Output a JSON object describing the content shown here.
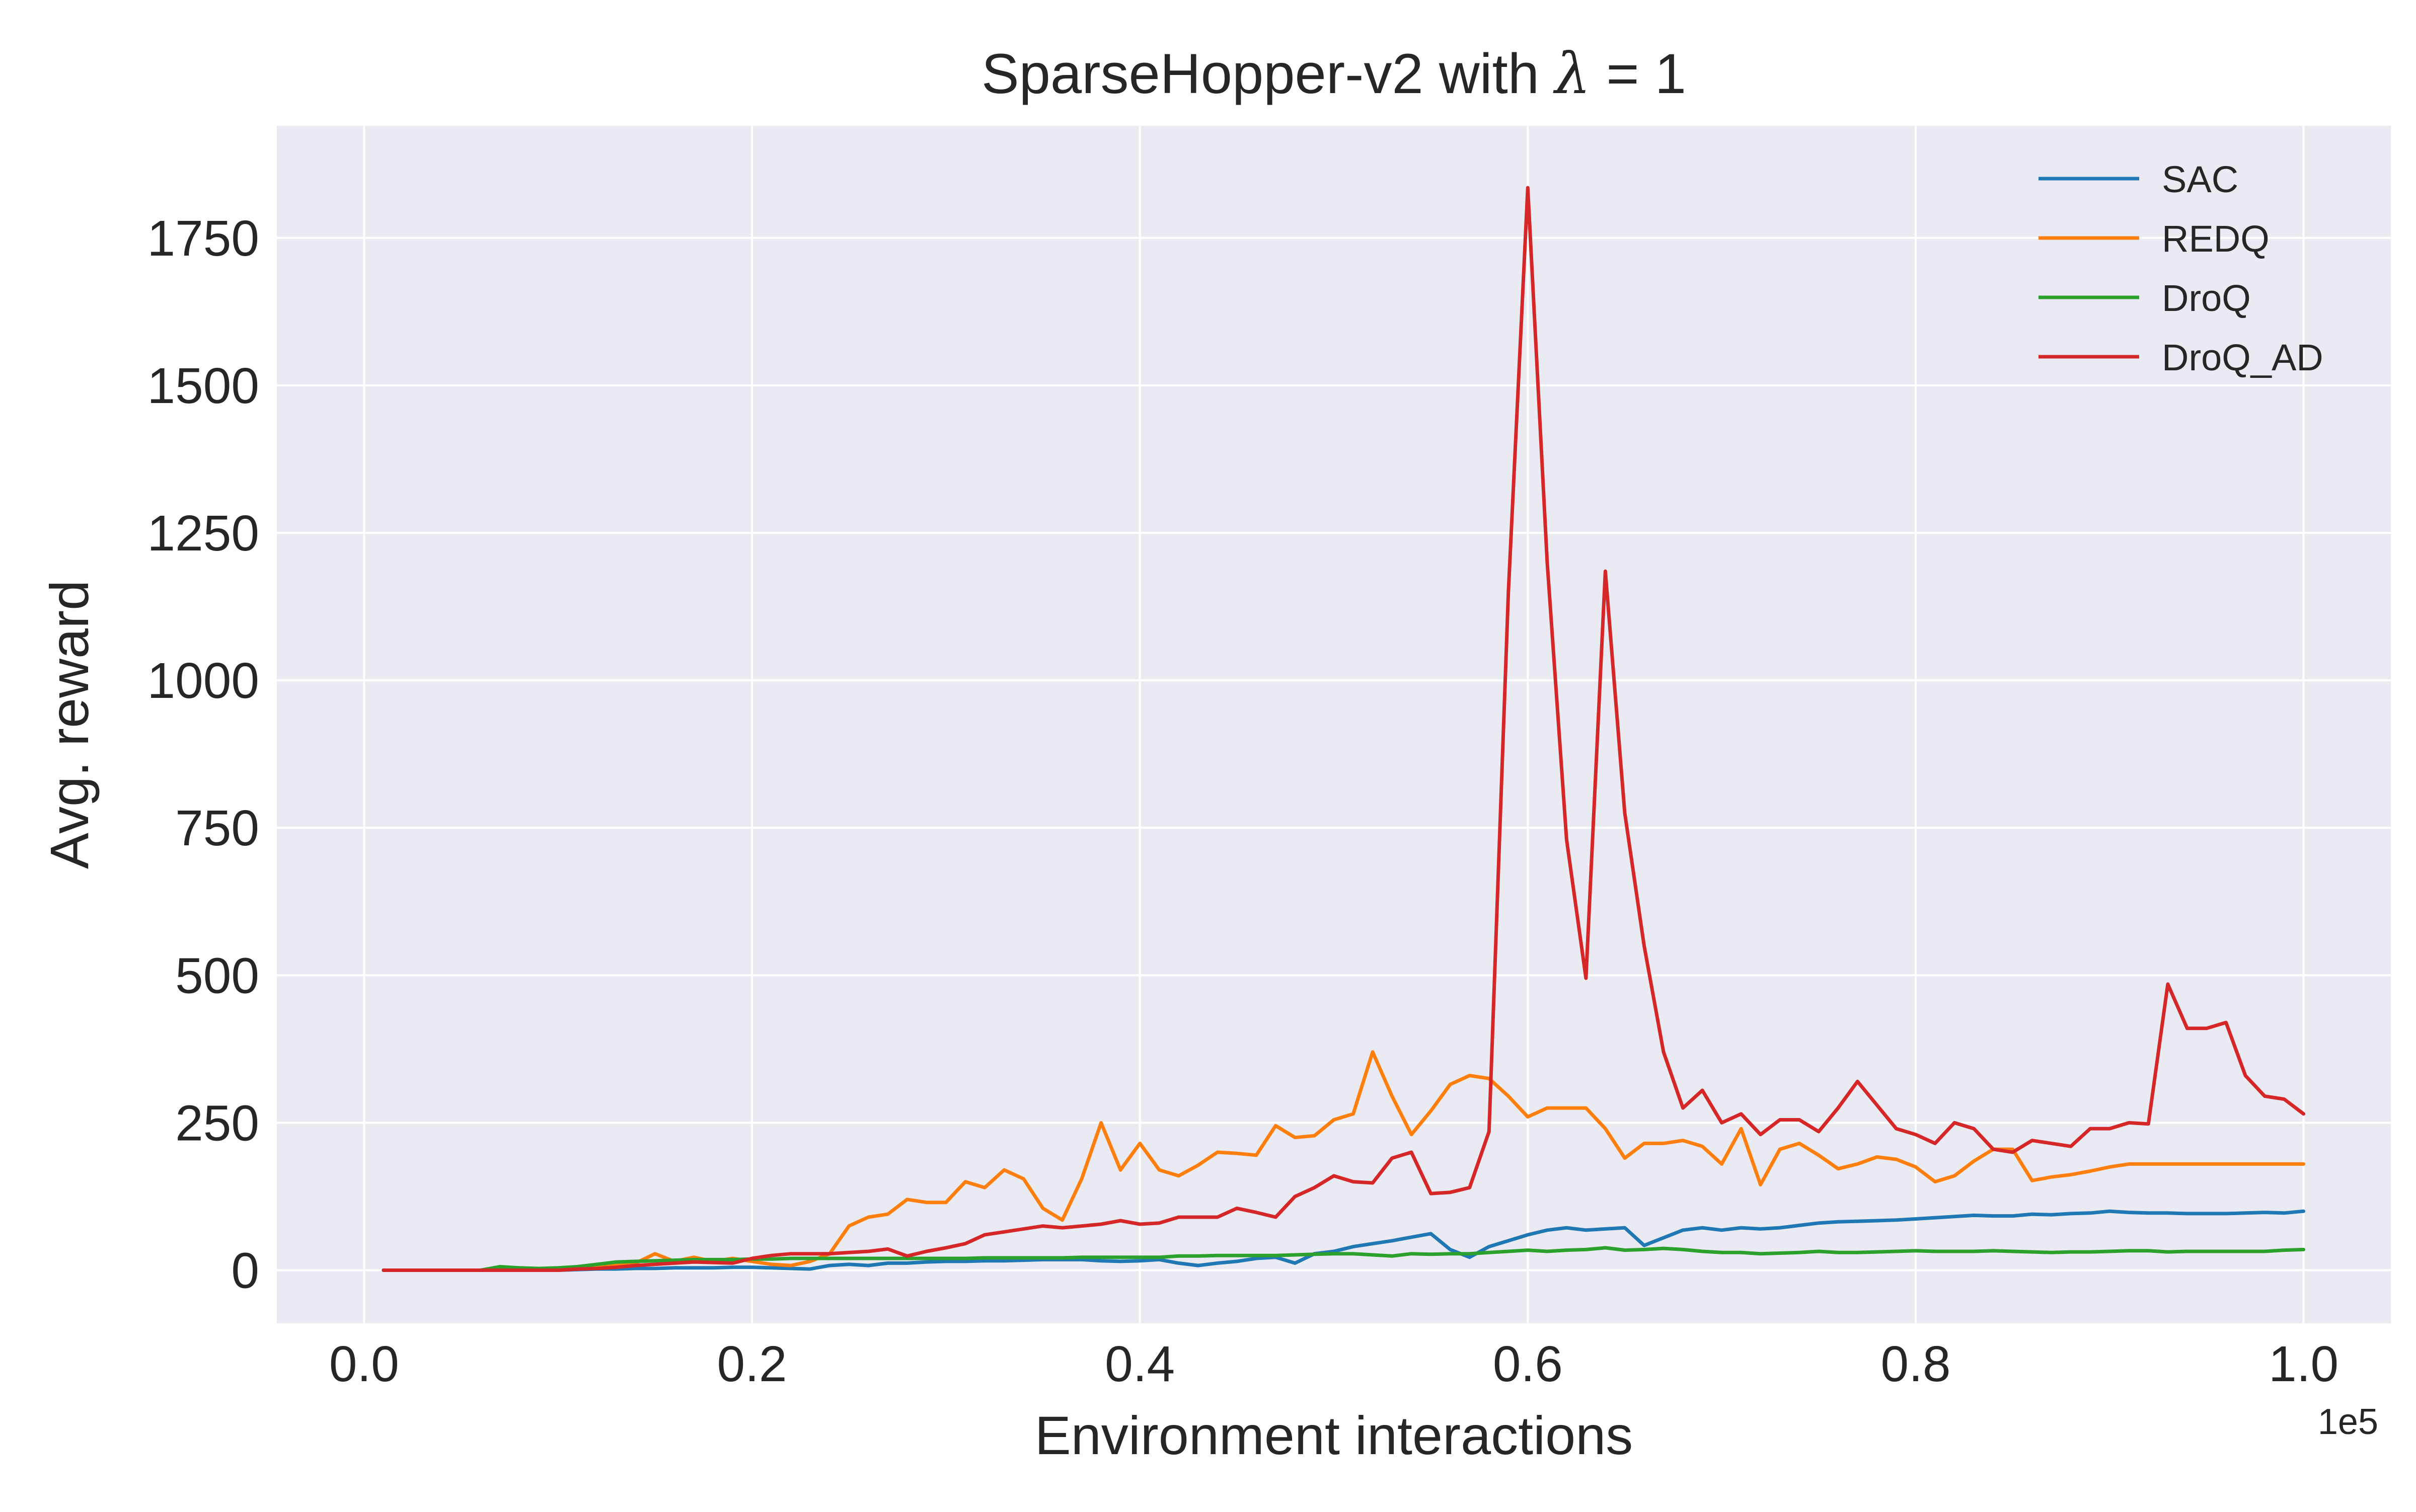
{
  "chart_data": {
    "type": "line",
    "title_main": "SparseHopper-v2 with ",
    "title_symbol": "λ",
    "title_rest": " = 1",
    "xlabel": "Environment interactions",
    "ylabel": "Avg. reward",
    "x_offset_label": "1e5",
    "xlim": [
      -0.045,
      1.045
    ],
    "ylim": [
      -90,
      1940
    ],
    "xticks": [
      0.0,
      0.2,
      0.4,
      0.6,
      0.8,
      1.0
    ],
    "xtick_labels": [
      "0.0",
      "0.2",
      "0.4",
      "0.6",
      "0.8",
      "1.0"
    ],
    "yticks": [
      0,
      250,
      500,
      750,
      1000,
      1250,
      1500,
      1750
    ],
    "ytick_labels": [
      "0",
      "250",
      "500",
      "750",
      "1000",
      "1250",
      "1500",
      "1750"
    ],
    "grid": true,
    "legend_position": "top-right",
    "colors": {
      "background": "#eaeaf2",
      "grid": "#ffffff",
      "SAC": "#1f77b4",
      "REDQ": "#ff7f0e",
      "DroQ": "#2ca02c",
      "DroQ_AD": "#d62728"
    },
    "x": [
      0.01,
      0.02,
      0.03,
      0.04,
      0.05,
      0.06,
      0.07,
      0.08,
      0.09,
      0.1,
      0.11,
      0.12,
      0.13,
      0.14,
      0.15,
      0.16,
      0.17,
      0.18,
      0.19,
      0.2,
      0.21,
      0.22,
      0.23,
      0.24,
      0.25,
      0.26,
      0.27,
      0.28,
      0.29,
      0.3,
      0.31,
      0.32,
      0.33,
      0.34,
      0.35,
      0.36,
      0.37,
      0.38,
      0.39,
      0.4,
      0.41,
      0.42,
      0.43,
      0.44,
      0.45,
      0.46,
      0.47,
      0.48,
      0.49,
      0.5,
      0.51,
      0.52,
      0.53,
      0.54,
      0.55,
      0.56,
      0.57,
      0.58,
      0.59,
      0.6,
      0.61,
      0.62,
      0.63,
      0.64,
      0.65,
      0.66,
      0.67,
      0.68,
      0.69,
      0.7,
      0.71,
      0.72,
      0.73,
      0.74,
      0.75,
      0.76,
      0.77,
      0.78,
      0.79,
      0.8,
      0.81,
      0.82,
      0.83,
      0.84,
      0.85,
      0.86,
      0.87,
      0.88,
      0.89,
      0.9,
      0.91,
      0.92,
      0.93,
      0.94,
      0.95,
      0.96,
      0.97,
      0.98,
      0.99,
      1.0
    ],
    "series": [
      {
        "name": "SAC",
        "values": [
          0,
          0,
          0,
          0,
          0,
          0,
          0,
          0,
          0,
          0,
          1,
          2,
          2,
          3,
          3,
          4,
          4,
          4,
          5,
          5,
          4,
          3,
          2,
          8,
          10,
          8,
          12,
          12,
          14,
          15,
          15,
          16,
          16,
          17,
          18,
          18,
          18,
          16,
          15,
          16,
          18,
          12,
          8,
          12,
          15,
          20,
          22,
          12,
          28,
          32,
          40,
          45,
          50,
          56,
          62,
          35,
          22,
          40,
          50,
          60,
          68,
          72,
          68,
          70,
          72,
          42,
          55,
          68,
          72,
          68,
          72,
          70,
          72,
          76,
          80,
          82,
          83,
          84,
          85,
          87,
          89,
          91,
          93,
          92,
          92,
          95,
          94,
          96,
          97,
          100,
          98,
          97,
          97,
          96,
          96,
          96,
          97,
          98,
          97,
          100
        ]
      },
      {
        "name": "REDQ",
        "values": [
          0,
          0,
          0,
          0,
          0,
          0,
          0,
          0,
          0,
          0,
          2,
          5,
          8,
          12,
          28,
          15,
          22,
          15,
          20,
          15,
          10,
          8,
          15,
          28,
          75,
          90,
          95,
          120,
          115,
          115,
          150,
          140,
          170,
          155,
          105,
          85,
          155,
          250,
          170,
          215,
          170,
          160,
          178,
          200,
          198,
          195,
          245,
          225,
          228,
          255,
          265,
          370,
          295,
          230,
          270,
          315,
          330,
          325,
          295,
          260,
          275,
          275,
          275,
          240,
          190,
          215,
          215,
          220,
          210,
          180,
          240,
          145,
          205,
          215,
          195,
          172,
          180,
          192,
          188,
          175,
          150,
          160,
          185,
          205,
          205,
          152,
          158,
          162,
          168,
          175,
          180,
          180,
          180,
          180,
          180,
          180,
          180,
          180,
          180,
          180
        ]
      },
      {
        "name": "DroQ",
        "values": [
          0,
          0,
          0,
          0,
          0,
          0,
          6,
          4,
          3,
          4,
          6,
          10,
          14,
          15,
          16,
          17,
          18,
          18,
          18,
          19,
          19,
          20,
          20,
          20,
          20,
          20,
          20,
          20,
          20,
          20,
          20,
          21,
          21,
          21,
          21,
          21,
          22,
          22,
          22,
          22,
          22,
          24,
          24,
          25,
          25,
          25,
          25,
          26,
          27,
          28,
          28,
          26,
          24,
          28,
          27,
          28,
          28,
          30,
          32,
          34,
          32,
          34,
          35,
          38,
          34,
          35,
          37,
          35,
          32,
          30,
          30,
          28,
          29,
          30,
          32,
          30,
          30,
          31,
          32,
          33,
          32,
          32,
          32,
          33,
          32,
          31,
          30,
          31,
          31,
          32,
          33,
          33,
          31,
          32,
          32,
          32,
          32,
          32,
          34,
          35
        ]
      },
      {
        "name": "DroQ_AD",
        "values": [
          0,
          0,
          0,
          0,
          0,
          0,
          0,
          0,
          0,
          0,
          2,
          3,
          5,
          8,
          10,
          12,
          14,
          13,
          12,
          20,
          25,
          28,
          28,
          28,
          30,
          32,
          36,
          24,
          32,
          38,
          45,
          60,
          65,
          70,
          75,
          72,
          75,
          78,
          84,
          78,
          80,
          90,
          90,
          90,
          105,
          98,
          90,
          125,
          140,
          160,
          150,
          148,
          190,
          200,
          130,
          132,
          140,
          235,
          1150,
          1835,
          1200,
          730,
          495,
          1185,
          775,
          550,
          370,
          275,
          305,
          250,
          265,
          230,
          255,
          255,
          235,
          275,
          320,
          280,
          240,
          230,
          215,
          250,
          240,
          205,
          200,
          220,
          215,
          210,
          240,
          240,
          250,
          248,
          485,
          410,
          410,
          420,
          330,
          295,
          290,
          265
        ]
      }
    ]
  }
}
